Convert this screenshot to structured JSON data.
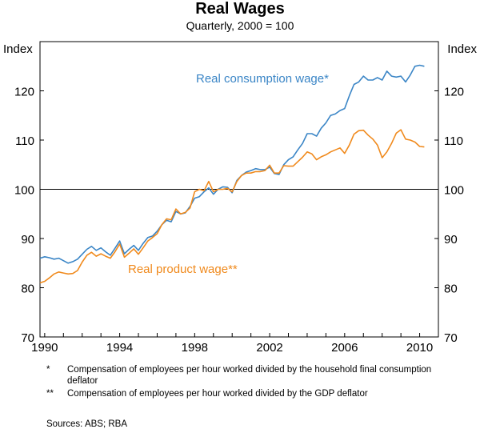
{
  "chart_data": {
    "type": "line",
    "title": "Real Wages",
    "subtitle": "Quarterly, 2000 = 100",
    "ylabel_left": "Index",
    "ylabel_right": "Index",
    "xlim": [
      1989.75,
      2011.0
    ],
    "ylim": [
      70,
      130
    ],
    "yticks": [
      70,
      80,
      90,
      100,
      110,
      120
    ],
    "xticks": [
      1990,
      1994,
      1998,
      2002,
      2006,
      2010
    ],
    "reference_line": 100,
    "series": [
      {
        "name": "Real consumption wage*",
        "color": "#3a85c6",
        "points": [
          [
            1989.75,
            86.0
          ],
          [
            1990.0,
            86.3
          ],
          [
            1990.25,
            86.1
          ],
          [
            1990.5,
            85.8
          ],
          [
            1990.75,
            86.0
          ],
          [
            1991.0,
            85.5
          ],
          [
            1991.25,
            85.0
          ],
          [
            1991.5,
            85.3
          ],
          [
            1991.75,
            85.8
          ],
          [
            1992.0,
            86.8
          ],
          [
            1992.25,
            87.8
          ],
          [
            1992.5,
            88.4
          ],
          [
            1992.75,
            87.6
          ],
          [
            1993.0,
            88.1
          ],
          [
            1993.25,
            87.3
          ],
          [
            1993.5,
            86.6
          ],
          [
            1993.75,
            88.0
          ],
          [
            1994.0,
            89.5
          ],
          [
            1994.25,
            86.9
          ],
          [
            1994.5,
            87.8
          ],
          [
            1994.75,
            88.6
          ],
          [
            1995.0,
            87.6
          ],
          [
            1995.25,
            89.0
          ],
          [
            1995.5,
            90.2
          ],
          [
            1995.75,
            90.5
          ],
          [
            1996.0,
            91.5
          ],
          [
            1996.25,
            92.8
          ],
          [
            1996.5,
            93.7
          ],
          [
            1996.75,
            93.4
          ],
          [
            1997.0,
            95.5
          ],
          [
            1997.25,
            95.0
          ],
          [
            1997.5,
            95.2
          ],
          [
            1997.75,
            96.5
          ],
          [
            1998.0,
            98.2
          ],
          [
            1998.25,
            98.5
          ],
          [
            1998.5,
            99.5
          ],
          [
            1998.75,
            100.3
          ],
          [
            1999.0,
            99.0
          ],
          [
            1999.25,
            100.0
          ],
          [
            1999.5,
            100.5
          ],
          [
            1999.75,
            100.4
          ],
          [
            2000.0,
            99.3
          ],
          [
            2000.25,
            101.8
          ],
          [
            2000.5,
            102.8
          ],
          [
            2000.75,
            103.5
          ],
          [
            2001.0,
            103.8
          ],
          [
            2001.25,
            104.2
          ],
          [
            2001.5,
            104.0
          ],
          [
            2001.75,
            104.0
          ],
          [
            2002.0,
            104.5
          ],
          [
            2002.25,
            103.2
          ],
          [
            2002.5,
            103.0
          ],
          [
            2002.75,
            105.0
          ],
          [
            2003.0,
            106.0
          ],
          [
            2003.25,
            106.6
          ],
          [
            2003.5,
            108.0
          ],
          [
            2003.75,
            109.3
          ],
          [
            2004.0,
            111.3
          ],
          [
            2004.25,
            111.3
          ],
          [
            2004.5,
            110.8
          ],
          [
            2004.75,
            112.4
          ],
          [
            2005.0,
            113.5
          ],
          [
            2005.25,
            115.0
          ],
          [
            2005.5,
            115.3
          ],
          [
            2005.75,
            116.0
          ],
          [
            2006.0,
            116.4
          ],
          [
            2006.25,
            119.0
          ],
          [
            2006.5,
            121.3
          ],
          [
            2006.75,
            121.8
          ],
          [
            2007.0,
            123.0
          ],
          [
            2007.25,
            122.2
          ],
          [
            2007.5,
            122.2
          ],
          [
            2007.75,
            122.7
          ],
          [
            2008.0,
            122.2
          ],
          [
            2008.25,
            124.0
          ],
          [
            2008.5,
            123.0
          ],
          [
            2008.75,
            122.8
          ],
          [
            2009.0,
            123.0
          ],
          [
            2009.25,
            121.8
          ],
          [
            2009.5,
            123.2
          ],
          [
            2009.75,
            125.0
          ],
          [
            2010.0,
            125.2
          ],
          [
            2010.25,
            125.0
          ]
        ]
      },
      {
        "name": "Real product wage**",
        "color": "#f08a1d",
        "points": [
          [
            1989.75,
            81.0
          ],
          [
            1990.0,
            81.3
          ],
          [
            1990.25,
            82.0
          ],
          [
            1990.5,
            82.8
          ],
          [
            1990.75,
            83.2
          ],
          [
            1991.0,
            83.0
          ],
          [
            1991.25,
            82.8
          ],
          [
            1991.5,
            82.9
          ],
          [
            1991.75,
            83.5
          ],
          [
            1992.0,
            85.2
          ],
          [
            1992.25,
            86.6
          ],
          [
            1992.5,
            87.2
          ],
          [
            1992.75,
            86.4
          ],
          [
            1993.0,
            86.9
          ],
          [
            1993.25,
            86.4
          ],
          [
            1993.5,
            86.0
          ],
          [
            1993.75,
            87.3
          ],
          [
            1994.0,
            88.9
          ],
          [
            1994.25,
            86.2
          ],
          [
            1994.5,
            87.0
          ],
          [
            1994.75,
            87.9
          ],
          [
            1995.0,
            86.8
          ],
          [
            1995.25,
            88.1
          ],
          [
            1995.5,
            89.5
          ],
          [
            1995.75,
            90.2
          ],
          [
            1996.0,
            91.0
          ],
          [
            1996.25,
            92.8
          ],
          [
            1996.5,
            94.0
          ],
          [
            1996.75,
            93.8
          ],
          [
            1997.0,
            96.0
          ],
          [
            1997.25,
            95.0
          ],
          [
            1997.5,
            95.3
          ],
          [
            1997.75,
            96.2
          ],
          [
            1998.0,
            99.5
          ],
          [
            1998.25,
            100.0
          ],
          [
            1998.5,
            99.7
          ],
          [
            1998.75,
            101.6
          ],
          [
            1999.0,
            99.5
          ],
          [
            1999.25,
            100.0
          ],
          [
            1999.5,
            100.0
          ],
          [
            1999.75,
            100.2
          ],
          [
            2000.0,
            99.5
          ],
          [
            2000.25,
            101.6
          ],
          [
            2000.5,
            102.8
          ],
          [
            2000.75,
            103.3
          ],
          [
            2001.0,
            103.3
          ],
          [
            2001.25,
            103.6
          ],
          [
            2001.5,
            103.6
          ],
          [
            2001.75,
            103.8
          ],
          [
            2002.0,
            104.9
          ],
          [
            2002.25,
            103.3
          ],
          [
            2002.5,
            103.3
          ],
          [
            2002.75,
            104.8
          ],
          [
            2003.0,
            104.7
          ],
          [
            2003.25,
            104.7
          ],
          [
            2003.5,
            105.6
          ],
          [
            2003.75,
            106.5
          ],
          [
            2004.0,
            107.6
          ],
          [
            2004.25,
            107.2
          ],
          [
            2004.5,
            106.0
          ],
          [
            2004.75,
            106.6
          ],
          [
            2005.0,
            107.0
          ],
          [
            2005.25,
            107.6
          ],
          [
            2005.5,
            108.0
          ],
          [
            2005.75,
            108.4
          ],
          [
            2006.0,
            107.3
          ],
          [
            2006.25,
            109.0
          ],
          [
            2006.5,
            111.2
          ],
          [
            2006.75,
            111.9
          ],
          [
            2007.0,
            112.0
          ],
          [
            2007.25,
            111.0
          ],
          [
            2007.5,
            110.2
          ],
          [
            2007.75,
            109.0
          ],
          [
            2008.0,
            106.4
          ],
          [
            2008.25,
            107.6
          ],
          [
            2008.5,
            109.3
          ],
          [
            2008.75,
            111.4
          ],
          [
            2009.0,
            112.1
          ],
          [
            2009.25,
            110.2
          ],
          [
            2009.5,
            110.0
          ],
          [
            2009.75,
            109.6
          ],
          [
            2010.0,
            108.7
          ],
          [
            2010.25,
            108.6
          ]
        ]
      }
    ]
  },
  "footnotes": [
    {
      "mark": "*",
      "text": "Compensation of employees per hour worked divided by the household final consumption deflator"
    },
    {
      "mark": "**",
      "text": "Compensation of employees per hour worked divided by the GDP deflator"
    }
  ],
  "sources": "Sources: ABS; RBA"
}
